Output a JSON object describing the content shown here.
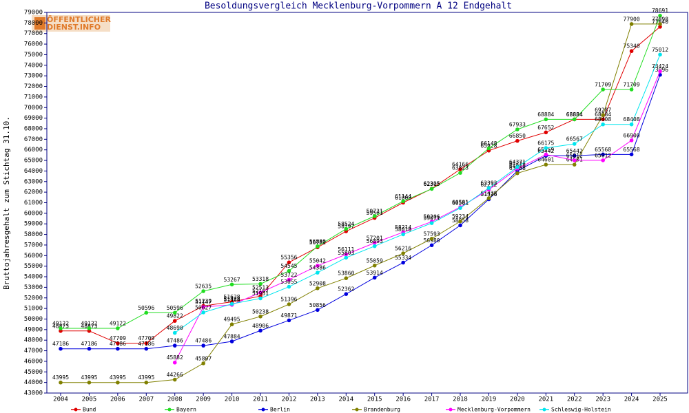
{
  "chart_data": {
    "type": "line",
    "title": "Besoldungsvergleich Mecklenburg-Vorpommern A 12 Endgehalt",
    "y_label": "Bruttojahresgehalt zum Stichtag 31.10.",
    "watermark": [
      "ÖFFENTLICHER",
      "DIENST.INFO"
    ],
    "categories": [
      "2004",
      "2005",
      "2006",
      "2007",
      "2008",
      "2009",
      "2010",
      "2011",
      "2012",
      "2013",
      "2014",
      "2015",
      "2016",
      "2017",
      "2018",
      "2019",
      "2020",
      "2021",
      "2022",
      "2023",
      "2024",
      "2025"
    ],
    "ylim": [
      43000,
      79000
    ],
    "yticks": [
      43000,
      44000,
      45000,
      46000,
      47000,
      48000,
      49000,
      50000,
      51000,
      52000,
      53000,
      54000,
      55000,
      56000,
      57000,
      58000,
      59000,
      60000,
      61000,
      62000,
      63000,
      64000,
      65000,
      66000,
      67000,
      68000,
      69000,
      70000,
      71000,
      72000,
      73000,
      74000,
      75000,
      76000,
      77000,
      78000,
      79000
    ],
    "series": [
      {
        "name": "Bund",
        "color": "#e00000",
        "values": [
          48873,
          48873,
          47709,
          47709,
          49822,
          51239,
          51628,
          52167,
          55356,
          56782,
          58297,
          59561,
          61008,
          62325,
          64166,
          65928,
          66850,
          67652,
          68884,
          68884,
          75340,
          77640
        ]
      },
      {
        "name": "Bayern",
        "color": "#22dd22",
        "values": [
          49122,
          49122,
          49122,
          50596,
          50596,
          52635,
          53267,
          53318,
          54545,
          56880,
          58524,
          59731,
          61144,
          62305,
          63823,
          66148,
          67933,
          68884,
          68884,
          71709,
          71709,
          78691
        ]
      },
      {
        "name": "Berlin",
        "color": "#0000dd",
        "values": [
          47186,
          47186,
          47186,
          47186,
          47486,
          47486,
          47884,
          48906,
          49871,
          50856,
          52362,
          53914,
          55334,
          56980,
          58858,
          61326,
          64010,
          65442,
          65442,
          65568,
          65568,
          73096
        ]
      },
      {
        "name": "Brandenburg",
        "color": "#808000",
        "values": [
          43995,
          43995,
          43995,
          43995,
          44266,
          45807,
          49495,
          50238,
          51396,
          52908,
          53860,
          55059,
          56216,
          57593,
          59234,
          61428,
          63788,
          64601,
          64601,
          69287,
          77900,
          77898
        ]
      },
      {
        "name": "Mecklenburg-Vorpommern",
        "color": "#ff00ff",
        "values": [
          null,
          null,
          null,
          null,
          45882,
          51147,
          51343,
          52513,
          53722,
          55042,
          56111,
          57201,
          58214,
          59206,
          60581,
          62232,
          64221,
          65559,
          65012,
          65012,
          66900,
          73424
        ]
      },
      {
        "name": "Schleswig-Holstein",
        "color": "#00e5ee",
        "values": [
          null,
          null,
          null,
          null,
          48690,
          50627,
          51428,
          51951,
          53055,
          54386,
          55803,
          56893,
          58010,
          59071,
          60501,
          62392,
          64371,
          66175,
          66567,
          68408,
          68408,
          75012
        ]
      }
    ]
  }
}
